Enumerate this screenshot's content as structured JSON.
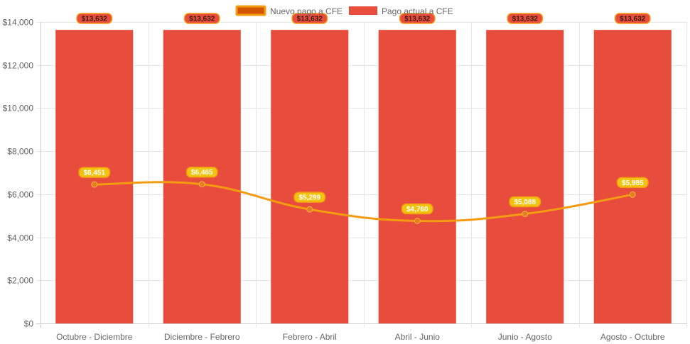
{
  "chart_data": {
    "type": "bar",
    "categories": [
      "Octubre - Diciembre",
      "Diciembre - Febrero",
      "Febrero - Abril",
      "Abril - Junio",
      "Junio - Agosto",
      "Agosto - Octubre"
    ],
    "ylim": [
      0,
      14000
    ],
    "y_ticks": [
      0,
      2000,
      4000,
      6000,
      8000,
      10000,
      12000,
      14000
    ],
    "y_tick_labels": [
      "$0",
      "$2,000",
      "$4,000",
      "$6,000",
      "$8,000",
      "$10,000",
      "$12,000",
      "$14,000"
    ],
    "grid": true,
    "legend_position": "top",
    "series": [
      {
        "name": "Nuevo pago a CFE",
        "type": "line",
        "values": [
          6451,
          6465,
          5299,
          4760,
          5088,
          5985
        ],
        "labels": [
          "$6,451",
          "$6,465",
          "$5,299",
          "$4,760",
          "$5,088",
          "$5,985"
        ],
        "color": "#f39c12",
        "point_color": "#e67e22",
        "legend_fill": "#d35400",
        "label_bg": "#f1c40f"
      },
      {
        "name": "Pago actual a CFE",
        "type": "bar",
        "values": [
          13632,
          13632,
          13632,
          13632,
          13632,
          13632
        ],
        "labels": [
          "$13,632",
          "$13,632",
          "$13,632",
          "$13,632",
          "$13,632",
          "$13,632"
        ],
        "color": "#e74c3c",
        "label_border": "#f39c12"
      }
    ]
  }
}
